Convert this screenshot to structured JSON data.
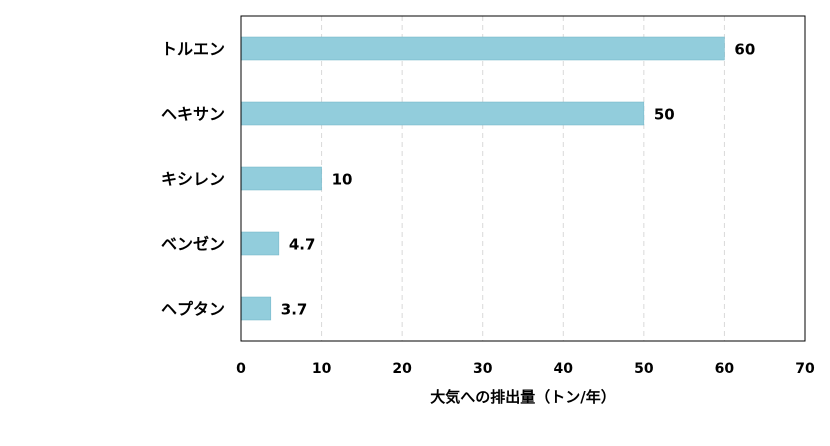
{
  "chart_data": {
    "type": "bar",
    "orientation": "horizontal",
    "categories": [
      "トルエン",
      "ヘキサン",
      "キシレン",
      "ベンゼン",
      "ヘプタン"
    ],
    "values": [
      60,
      50,
      10,
      4.7,
      3.7
    ],
    "value_labels": [
      "60",
      "50",
      "10",
      "4.7",
      "3.7"
    ],
    "xlabel": "大気への排出量（トン/年）",
    "ylabel": "",
    "xlim": [
      0,
      70
    ],
    "xticks": [
      0,
      10,
      20,
      30,
      40,
      50,
      60,
      70
    ],
    "grid": "vertical dashed",
    "legend": "none",
    "colors": {
      "bar": "#92cddc",
      "bar_edge": "#6fb3c6",
      "grid": "#d9d9d9",
      "axis": "#000000"
    }
  }
}
